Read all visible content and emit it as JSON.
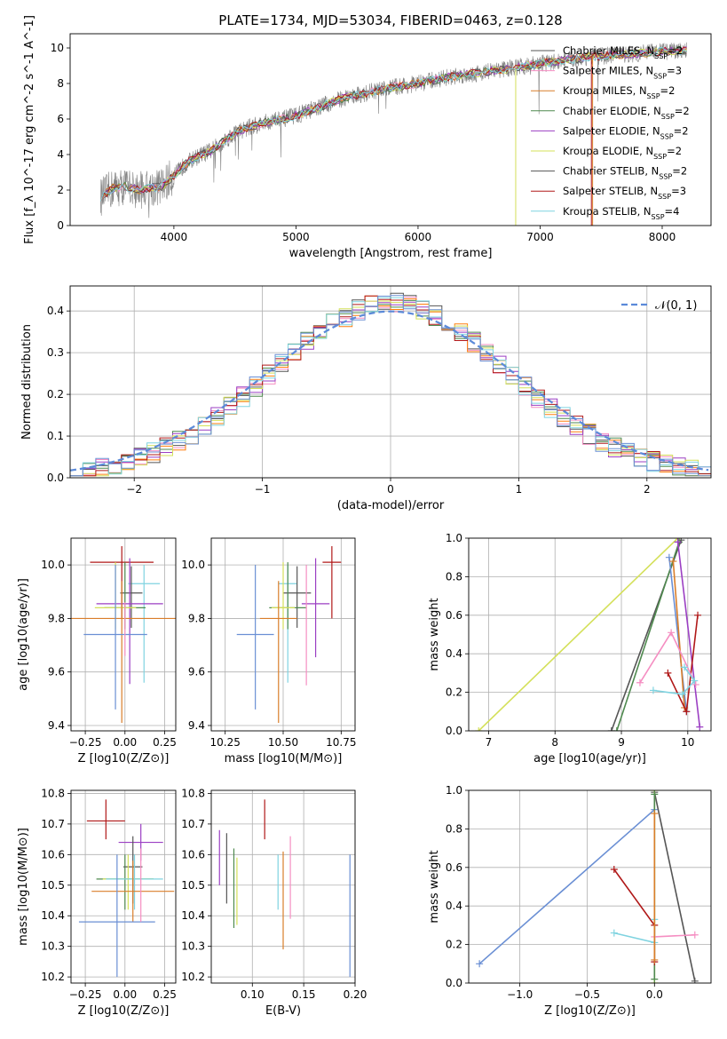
{
  "figure": {
    "title": "PLATE=1734, MJD=53034, FIBERID=0463, z=0.128"
  },
  "colors": {
    "c0": "#d97e2a",
    "c1": "#4f8a4f",
    "c2": "#9b3fc3",
    "c3": "#d4e05a",
    "c4": "#555555",
    "c5": "#b01818",
    "c6": "#7fd3e0",
    "c7": "#f58ec2",
    "c8": "#ff7f0e",
    "c9": "#6a8fd4",
    "data": "#808080",
    "normal": "#5b8ad9"
  },
  "chart_data": [
    {
      "id": "spectrum",
      "type": "line",
      "xlabel": "wavelength [Angstrom, rest frame]",
      "ylabel": "Flux [f_λ 10^-17 erg cm^-2 s^-1 A^-1]",
      "xlim": [
        3150,
        8400
      ],
      "ylim": [
        0,
        10.8
      ],
      "xticks": [
        4000,
        5000,
        6000,
        7000,
        8000
      ],
      "yticks": [
        0,
        2,
        4,
        6,
        8,
        10
      ],
      "legend": "top-right",
      "series": [
        {
          "name": "Chabrier MILES, N_SSP=2",
          "color": "#555555"
        },
        {
          "name": "Salpeter MILES, N_SSP=3",
          "color": "#f58ec2"
        },
        {
          "name": "Kroupa MILES, N_SSP=2",
          "color": "#d97e2a"
        },
        {
          "name": "Chabrier ELODIE, N_SSP=2",
          "color": "#4f8a4f"
        },
        {
          "name": "Salpeter ELODIE, N_SSP=2",
          "color": "#9b3fc3"
        },
        {
          "name": "Kroupa ELODIE, N_SSP=2",
          "color": "#d4e05a"
        },
        {
          "name": "Chabrier STELIB, N_SSP=2",
          "color": "#555555"
        },
        {
          "name": "Salpeter STELIB, N_SSP=3",
          "color": "#b01818"
        },
        {
          "name": "Kroupa STELIB, N_SSP=4",
          "color": "#7fd3e0"
        }
      ],
      "continuum": [
        [
          3400,
          1.6
        ],
        [
          3500,
          2.1
        ],
        [
          3600,
          2.2
        ],
        [
          3700,
          2.0
        ],
        [
          3800,
          2.1
        ],
        [
          3900,
          2.2
        ],
        [
          4000,
          2.8
        ],
        [
          4100,
          3.5
        ],
        [
          4200,
          3.9
        ],
        [
          4300,
          4.2
        ],
        [
          4400,
          4.7
        ],
        [
          4500,
          5.2
        ],
        [
          4600,
          5.5
        ],
        [
          4700,
          5.7
        ],
        [
          4800,
          5.9
        ],
        [
          4900,
          6.0
        ],
        [
          5000,
          6.2
        ],
        [
          5200,
          6.7
        ],
        [
          5400,
          7.2
        ],
        [
          5600,
          7.5
        ],
        [
          5800,
          7.8
        ],
        [
          6000,
          8.0
        ],
        [
          6200,
          8.3
        ],
        [
          6400,
          8.5
        ],
        [
          6600,
          8.7
        ],
        [
          6800,
          8.9
        ],
        [
          7000,
          9.1
        ],
        [
          7200,
          9.3
        ],
        [
          7400,
          9.5
        ],
        [
          7600,
          9.6
        ],
        [
          7800,
          9.7
        ],
        [
          8000,
          9.8
        ],
        [
          8200,
          9.85
        ]
      ]
    },
    {
      "id": "residual-hist",
      "type": "line",
      "xlabel": "(data-model)/error",
      "ylabel": "Normed distribution",
      "xlim": [
        -2.5,
        2.5
      ],
      "ylim": [
        0,
        0.46
      ],
      "xticks": [
        -2,
        -1,
        0,
        1,
        2
      ],
      "yticks": [
        0.0,
        0.1,
        0.2,
        0.3,
        0.4
      ],
      "legend": "top-right",
      "normal_label": "𝒩(0, 1)"
    },
    {
      "id": "age-vs-Z",
      "type": "scatter",
      "xlabel": "Z [log10(Z/Z⊙)]",
      "ylabel": "age [log10(age/yr)]",
      "xlim": [
        -0.34,
        0.32
      ],
      "ylim": [
        9.38,
        10.1
      ],
      "xticks": [
        -0.25,
        0.0,
        0.25
      ],
      "yticks": [
        9.4,
        9.6,
        9.8,
        10.0
      ],
      "points": [
        {
          "x": -0.02,
          "y": 10.01,
          "xerr": 0.2,
          "yerr": [
            0.21,
            0.06
          ],
          "color": "#b01818"
        },
        {
          "x": 0.12,
          "y": 9.93,
          "xerr": 0.1,
          "yerr": [
            0.37,
            0.07
          ],
          "color": "#7fd3e0"
        },
        {
          "x": 0.04,
          "y": 9.895,
          "xerr": 0.07,
          "yerr": [
            0.13,
            0.1
          ],
          "color": "#555555"
        },
        {
          "x": 0.03,
          "y": 9.855,
          "xerr": 0.21,
          "yerr": [
            0.3,
            0.17
          ],
          "color": "#9b3fc3"
        },
        {
          "x": 0.0,
          "y": 9.84,
          "xerr": 0.13,
          "yerr": [
            0.08,
            0.17
          ],
          "color": "#4f8a4f"
        },
        {
          "x": -0.06,
          "y": 9.84,
          "xerr": 0.13,
          "yerr": [
            0.08,
            0.17
          ],
          "color": "#d4e05a"
        },
        {
          "x": -0.02,
          "y": 9.8,
          "xerr": [
            0.35,
            0.35
          ],
          "yerr": [
            0.39,
            0.14
          ],
          "color": "#d97e2a"
        },
        {
          "x": -0.06,
          "y": 9.74,
          "xerr": 0.2,
          "yerr": [
            0.28,
            0.26
          ],
          "color": "#6a8fd4"
        },
        {
          "x": 0.0,
          "y": 9.8,
          "xerr": 0.0,
          "yerr": [
            0.14,
            0.06
          ],
          "color": "#f58ec2"
        }
      ]
    },
    {
      "id": "age-vs-mass",
      "type": "scatter",
      "xlabel": "mass [log10(M/M⊙)]",
      "ylabel": "",
      "xlim": [
        10.19,
        10.81
      ],
      "ylim": [
        9.38,
        10.1
      ],
      "xticks": [
        10.25,
        10.5,
        10.75
      ],
      "yticks": [
        9.4,
        9.6,
        9.8,
        10.0
      ],
      "points": [
        {
          "x": 10.71,
          "y": 10.01,
          "xerr": 0.04,
          "yerr": [
            0.21,
            0.06
          ],
          "color": "#b01818"
        },
        {
          "x": 10.52,
          "y": 9.93,
          "xerr": 0.04,
          "yerr": [
            0.37,
            0.07
          ],
          "color": "#7fd3e0"
        },
        {
          "x": 10.56,
          "y": 9.895,
          "xerr": 0.06,
          "yerr": [
            0.13,
            0.1
          ],
          "color": "#555555"
        },
        {
          "x": 10.64,
          "y": 9.855,
          "xerr": 0.06,
          "yerr": [
            0.2,
            0.17
          ],
          "color": "#9b3fc3"
        },
        {
          "x": 10.52,
          "y": 9.84,
          "xerr": 0.08,
          "yerr": [
            0.08,
            0.17
          ],
          "color": "#4f8a4f"
        },
        {
          "x": 10.5,
          "y": 9.84,
          "xerr": 0.05,
          "yerr": [
            0.08,
            0.17
          ],
          "color": "#d4e05a"
        },
        {
          "x": 10.48,
          "y": 9.8,
          "xerr": 0.08,
          "yerr": [
            0.39,
            0.14
          ],
          "color": "#d97e2a"
        },
        {
          "x": 10.38,
          "y": 9.74,
          "xerr": 0.08,
          "yerr": [
            0.28,
            0.26
          ],
          "color": "#6a8fd4"
        },
        {
          "x": 10.6,
          "y": 9.8,
          "xerr": 0.0,
          "yerr": [
            0.25,
            0.2
          ],
          "color": "#f58ec2"
        }
      ]
    },
    {
      "id": "weight-vs-age",
      "type": "line",
      "xlabel": "age [log10(age/yr)]",
      "ylabel": "mass weight",
      "xlim": [
        6.7,
        10.35
      ],
      "ylim": [
        0,
        1
      ],
      "xticks": [
        7,
        8,
        9,
        10
      ],
      "yticks": [
        0.0,
        0.2,
        0.4,
        0.6,
        0.8,
        1.0
      ],
      "series": [
        {
          "color": "#d4e05a",
          "points": [
            [
              6.85,
              0.0
            ],
            [
              9.85,
              1.0
            ]
          ]
        },
        {
          "color": "#555555",
          "points": [
            [
              8.85,
              0.0
            ],
            [
              9.9,
              0.99
            ]
          ]
        },
        {
          "color": "#4f8a4f",
          "points": [
            [
              8.93,
              0.0
            ],
            [
              9.87,
              0.98
            ]
          ]
        },
        {
          "color": "#6a8fd4",
          "points": [
            [
              9.72,
              0.9
            ],
            [
              9.98,
              0.1
            ]
          ]
        },
        {
          "color": "#d97e2a",
          "points": [
            [
              9.78,
              0.88
            ],
            [
              9.95,
              0.12
            ]
          ]
        },
        {
          "color": "#9b3fc3",
          "points": [
            [
              9.85,
              0.98
            ],
            [
              10.18,
              0.02
            ]
          ]
        },
        {
          "color": "#b01818",
          "points": [
            [
              9.7,
              0.3
            ],
            [
              9.98,
              0.1
            ],
            [
              10.15,
              0.6
            ]
          ]
        },
        {
          "color": "#f58ec2",
          "points": [
            [
              9.28,
              0.25
            ],
            [
              9.75,
              0.51
            ],
            [
              10.12,
              0.24
            ]
          ]
        },
        {
          "color": "#7fd3e0",
          "points": [
            [
              9.48,
              0.21
            ],
            [
              9.92,
              0.19
            ],
            [
              10.1,
              0.26
            ],
            [
              9.95,
              0.33
            ]
          ]
        }
      ]
    },
    {
      "id": "mass-vs-Z",
      "type": "scatter",
      "xlabel": "Z [log10(Z/Z⊙)]",
      "ylabel": "mass [log10(M/M⊙)]",
      "xlim": [
        -0.34,
        0.32
      ],
      "ylim": [
        10.18,
        10.81
      ],
      "xticks": [
        -0.25,
        0.0,
        0.25
      ],
      "yticks": [
        10.2,
        10.3,
        10.4,
        10.5,
        10.6,
        10.7,
        10.8
      ],
      "points": [
        {
          "x": -0.12,
          "y": 10.71,
          "xerr": 0.12,
          "yerr": [
            0.06,
            0.07
          ],
          "color": "#b01818"
        },
        {
          "x": 0.1,
          "y": 10.64,
          "xerr": 0.14,
          "yerr": [
            0.06,
            0.06
          ],
          "color": "#9b3fc3"
        },
        {
          "x": 0.05,
          "y": 10.56,
          "xerr": 0.06,
          "yerr": [
            0.12,
            0.1
          ],
          "color": "#555555"
        },
        {
          "x": 0.0,
          "y": 10.52,
          "xerr": 0.18,
          "yerr": [
            0.1,
            0.08
          ],
          "color": "#4f8a4f"
        },
        {
          "x": 0.02,
          "y": 10.52,
          "xerr": 0.16,
          "yerr": [
            0.1,
            0.08
          ],
          "color": "#d4e05a"
        },
        {
          "x": 0.06,
          "y": 10.52,
          "xerr": 0.18,
          "yerr": [
            0.1,
            0.08
          ],
          "color": "#7fd3e0"
        },
        {
          "x": 0.05,
          "y": 10.48,
          "xerr": 0.26,
          "yerr": [
            0.1,
            0.1
          ],
          "color": "#d97e2a"
        },
        {
          "x": -0.05,
          "y": 10.38,
          "xerr": 0.24,
          "yerr": [
            0.18,
            0.22
          ],
          "color": "#6a8fd4"
        },
        {
          "x": 0.1,
          "y": 10.52,
          "xerr": 0.0,
          "yerr": [
            0.14,
            0.1
          ],
          "color": "#f58ec2"
        }
      ]
    },
    {
      "id": "mass-vs-EBV",
      "type": "scatter",
      "xlabel": "E(B-V)",
      "ylabel": "",
      "xlim": [
        0.06,
        0.2
      ],
      "ylim": [
        10.18,
        10.81
      ],
      "xticks": [
        0.1,
        0.15,
        0.2
      ],
      "yticks": [
        10.2,
        10.3,
        10.4,
        10.5,
        10.6,
        10.7,
        10.8
      ],
      "points": [
        {
          "x": 0.068,
          "y": 10.59,
          "yerr": [
            0.09,
            0.09
          ],
          "color": "#9b3fc3"
        },
        {
          "x": 0.075,
          "y": 10.55,
          "yerr": [
            0.11,
            0.12
          ],
          "color": "#555555"
        },
        {
          "x": 0.082,
          "y": 10.49,
          "yerr": [
            0.13,
            0.13
          ],
          "color": "#4f8a4f"
        },
        {
          "x": 0.085,
          "y": 10.48,
          "yerr": [
            0.11,
            0.11
          ],
          "color": "#d4e05a"
        },
        {
          "x": 0.112,
          "y": 10.71,
          "yerr": [
            0.06,
            0.07
          ],
          "color": "#b01818"
        },
        {
          "x": 0.125,
          "y": 10.52,
          "yerr": [
            0.1,
            0.08
          ],
          "color": "#7fd3e0"
        },
        {
          "x": 0.13,
          "y": 10.45,
          "yerr": [
            0.16,
            0.16
          ],
          "color": "#d97e2a"
        },
        {
          "x": 0.137,
          "y": 10.52,
          "yerr": [
            0.13,
            0.14
          ],
          "color": "#f58ec2"
        },
        {
          "x": 0.195,
          "y": 10.4,
          "yerr": [
            0.2,
            0.2
          ],
          "color": "#6a8fd4"
        }
      ]
    },
    {
      "id": "weight-vs-Z",
      "type": "line",
      "xlabel": "Z [log10(Z/Z⊙)]",
      "ylabel": "mass weight",
      "xlim": [
        -1.38,
        0.42
      ],
      "ylim": [
        0,
        1
      ],
      "xticks": [
        -1.0,
        -0.5,
        0.0
      ],
      "yticks": [
        0.0,
        0.2,
        0.4,
        0.6,
        0.8,
        1.0
      ],
      "series": [
        {
          "color": "#6a8fd4",
          "points": [
            [
              -1.3,
              0.1
            ],
            [
              0.0,
              0.9
            ]
          ]
        },
        {
          "color": "#555555",
          "points": [
            [
              0.0,
              0.99
            ],
            [
              0.3,
              0.01
            ]
          ]
        },
        {
          "color": "#d4e05a",
          "points": [
            [
              0.0,
              1.0
            ],
            [
              0.0,
              0.0
            ]
          ]
        },
        {
          "color": "#4f8a4f",
          "points": [
            [
              0.0,
              0.98
            ],
            [
              0.0,
              0.02
            ]
          ]
        },
        {
          "color": "#b01818",
          "points": [
            [
              -0.3,
              0.59
            ],
            [
              0.0,
              0.3
            ],
            [
              0.0,
              0.11
            ]
          ]
        },
        {
          "color": "#f58ec2",
          "points": [
            [
              0.0,
              0.24
            ],
            [
              0.3,
              0.25
            ]
          ]
        },
        {
          "color": "#7fd3e0",
          "points": [
            [
              -0.3,
              0.26
            ],
            [
              0.0,
              0.21
            ],
            [
              0.0,
              0.33
            ]
          ]
        },
        {
          "color": "#d97e2a",
          "points": [
            [
              0.0,
              0.88
            ],
            [
              0.0,
              0.12
            ]
          ]
        }
      ]
    }
  ]
}
